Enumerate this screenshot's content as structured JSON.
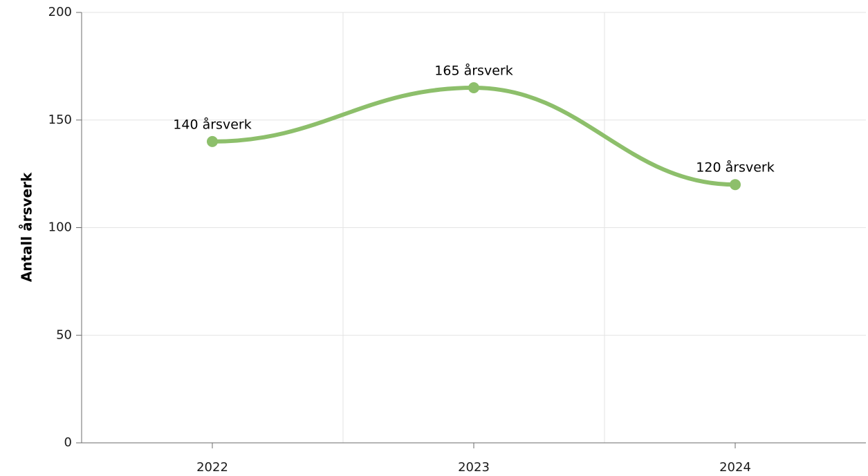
{
  "chart_data": {
    "type": "line",
    "title": "",
    "xlabel": "",
    "ylabel": "Antall årsverk",
    "categories": [
      "2022",
      "2023",
      "2024"
    ],
    "series": [
      {
        "values": [
          140,
          165,
          120
        ],
        "data_labels": [
          "140 årsverk",
          "165 årsverk",
          "120 årsverk"
        ],
        "color": "#8dbf6b"
      }
    ],
    "ylim": [
      0,
      200
    ],
    "yticks": [
      "0",
      "50",
      "100",
      "150",
      "200"
    ],
    "grid": true,
    "smooth": true
  }
}
